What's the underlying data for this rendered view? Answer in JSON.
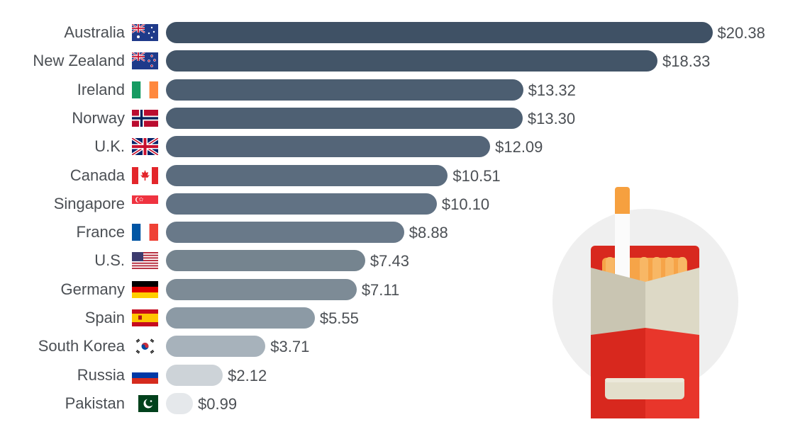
{
  "chart_data": {
    "type": "bar",
    "orientation": "horizontal",
    "categories": [
      "Australia",
      "New Zealand",
      "Ireland",
      "Norway",
      "U.K.",
      "Canada",
      "Singapore",
      "France",
      "U.S.",
      "Germany",
      "Spain",
      "South Korea",
      "Russia",
      "Pakistan"
    ],
    "values": [
      20.38,
      18.33,
      13.32,
      13.3,
      12.09,
      10.51,
      10.1,
      8.88,
      7.43,
      7.11,
      5.55,
      3.71,
      2.12,
      0.99
    ],
    "value_labels": [
      "$20.38",
      "$18.33",
      "$13.32",
      "$13.30",
      "$12.09",
      "$10.51",
      "$10.10",
      "$8.88",
      "$7.43",
      "$7.11",
      "$5.55",
      "$3.71",
      "$2.12",
      "$0.99"
    ],
    "flags": [
      "flag-australia-icon",
      "flag-new-zealand-icon",
      "flag-ireland-icon",
      "flag-norway-icon",
      "flag-uk-icon",
      "flag-canada-icon",
      "flag-singapore-icon",
      "flag-france-icon",
      "flag-us-icon",
      "flag-germany-icon",
      "flag-spain-icon",
      "flag-south-korea-icon",
      "flag-russia-icon",
      "flag-pakistan-icon"
    ],
    "bar_colors": [
      "#3f5165",
      "#435568",
      "#4c5e71",
      "#4e6073",
      "#546578",
      "#5b6c7e",
      "#617284",
      "#697989",
      "#75848f",
      "#7d8b96",
      "#8c9aa5",
      "#a7b2bb",
      "#cdd3d8",
      "#e5e8eb"
    ],
    "xlim": [
      0,
      21
    ],
    "grid": false,
    "legend": "none"
  },
  "illustration": {
    "name": "cigarette-pack-icon"
  }
}
